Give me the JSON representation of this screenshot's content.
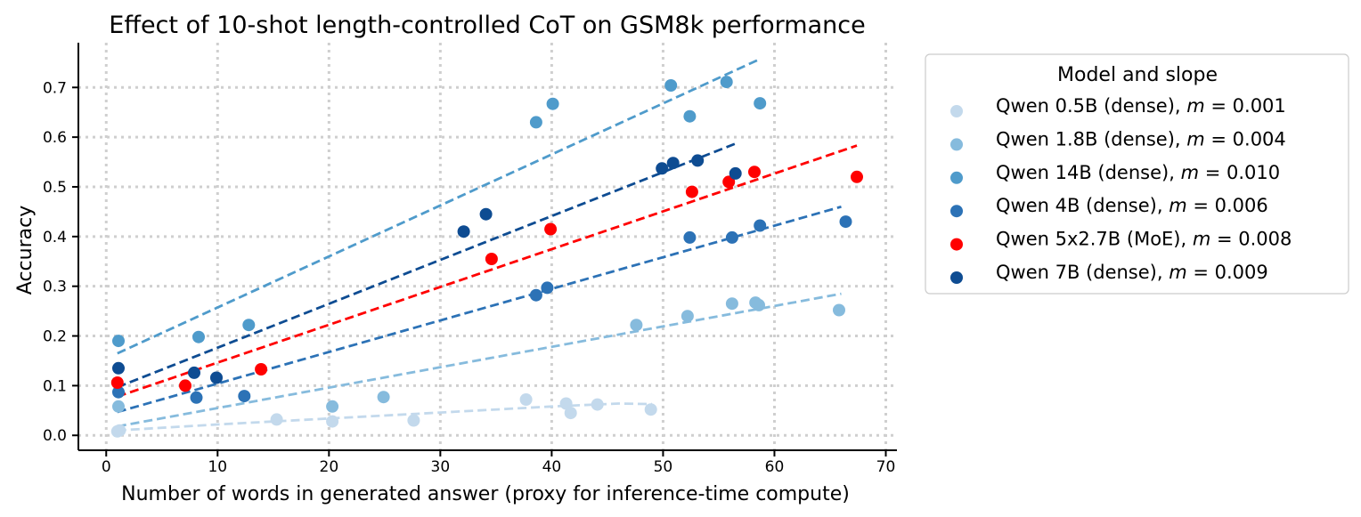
{
  "chart_data": {
    "type": "scatter",
    "title": "Effect of 10-shot length-controlled CoT on GSM8k performance",
    "xlabel": "Number of words in generated answer (proxy for inference-time compute)",
    "ylabel": "Accuracy",
    "xlim": [
      -2.5,
      71
    ],
    "ylim": [
      -0.03,
      0.79
    ],
    "xticks": [
      0,
      10,
      20,
      30,
      40,
      50,
      60,
      70
    ],
    "yticks": [
      0.0,
      0.1,
      0.2,
      0.3,
      0.4,
      0.5,
      0.6,
      0.7
    ],
    "xtick_labels": [
      "0",
      "10",
      "20",
      "30",
      "40",
      "50",
      "60",
      "70"
    ],
    "ytick_labels": [
      "0.0",
      "0.1",
      "0.2",
      "0.3",
      "0.4",
      "0.5",
      "0.6",
      "0.7"
    ],
    "grid": true,
    "legend_title": "Model and slope",
    "legend_position": "outside-right",
    "series": [
      {
        "name": "Qwen 0.5B (dense)",
        "slope": "0.001",
        "color": "#c3d9ec",
        "fit_style": "curve",
        "points": [
          [
            1,
            0.008
          ],
          [
            1.2,
            0.01
          ],
          [
            15.3,
            0.032
          ],
          [
            20.3,
            0.028
          ],
          [
            27.6,
            0.03
          ],
          [
            37.7,
            0.072
          ],
          [
            41.3,
            0.064
          ],
          [
            41.7,
            0.045
          ],
          [
            44.1,
            0.062
          ],
          [
            48.9,
            0.052
          ]
        ],
        "fit_line": [
          [
            1,
            0.01
          ],
          [
            10,
            0.022
          ],
          [
            20,
            0.034
          ],
          [
            30,
            0.046
          ],
          [
            40,
            0.058
          ],
          [
            46,
            0.064
          ],
          [
            49,
            0.063
          ]
        ]
      },
      {
        "name": "Qwen 1.8B (dense)",
        "slope": "0.004",
        "color": "#86bbdd",
        "fit_style": "line",
        "points": [
          [
            1.1,
            0.058
          ],
          [
            20.3,
            0.058
          ],
          [
            24.9,
            0.077
          ],
          [
            47.6,
            0.222
          ],
          [
            52.2,
            0.24
          ],
          [
            56.2,
            0.265
          ],
          [
            58.3,
            0.267
          ],
          [
            58.6,
            0.262
          ],
          [
            65.8,
            0.252
          ]
        ],
        "fit_line": [
          [
            1,
            0.018
          ],
          [
            66,
            0.285
          ]
        ]
      },
      {
        "name": "Qwen 14B (dense)",
        "slope": "0.010",
        "color": "#4f9bcb",
        "fit_style": "line",
        "points": [
          [
            1.1,
            0.19
          ],
          [
            8.3,
            0.198
          ],
          [
            12.8,
            0.222
          ],
          [
            38.6,
            0.63
          ],
          [
            40.1,
            0.667
          ],
          [
            50.7,
            0.704
          ],
          [
            52.4,
            0.642
          ],
          [
            55.7,
            0.711
          ],
          [
            58.7,
            0.668
          ]
        ],
        "fit_line": [
          [
            1,
            0.165
          ],
          [
            58.5,
            0.755
          ]
        ]
      },
      {
        "name": "Qwen 4B (dense)",
        "slope": "0.006",
        "color": "#2c72b6",
        "fit_style": "line",
        "points": [
          [
            1.1,
            0.087
          ],
          [
            8.1,
            0.076
          ],
          [
            12.4,
            0.079
          ],
          [
            38.6,
            0.282
          ],
          [
            39.6,
            0.297
          ],
          [
            52.4,
            0.398
          ],
          [
            56.2,
            0.398
          ],
          [
            58.7,
            0.422
          ],
          [
            66.4,
            0.43
          ]
        ],
        "fit_line": [
          [
            1,
            0.047
          ],
          [
            66,
            0.46
          ]
        ]
      },
      {
        "name": "Qwen 5x2.7B (MoE)",
        "slope": "0.008",
        "color": "#ff0000",
        "fit_style": "line",
        "points": [
          [
            1,
            0.106
          ],
          [
            7.1,
            0.1
          ],
          [
            13.9,
            0.133
          ],
          [
            34.6,
            0.355
          ],
          [
            39.9,
            0.415
          ],
          [
            52.6,
            0.49
          ],
          [
            55.9,
            0.51
          ],
          [
            58.2,
            0.53
          ],
          [
            67.4,
            0.52
          ]
        ],
        "fit_line": [
          [
            1,
            0.078
          ],
          [
            67.4,
            0.583
          ]
        ]
      },
      {
        "name": "Qwen 7B (dense)",
        "slope": "0.009",
        "color": "#0e4c92",
        "fit_style": "line",
        "points": [
          [
            1.1,
            0.135
          ],
          [
            7.9,
            0.126
          ],
          [
            9.9,
            0.116
          ],
          [
            32.1,
            0.41
          ],
          [
            34.1,
            0.445
          ],
          [
            49.9,
            0.537
          ],
          [
            50.9,
            0.548
          ],
          [
            53.1,
            0.553
          ],
          [
            56.5,
            0.527
          ]
        ],
        "fit_line": [
          [
            1,
            0.097
          ],
          [
            56.5,
            0.587
          ]
        ]
      }
    ]
  }
}
